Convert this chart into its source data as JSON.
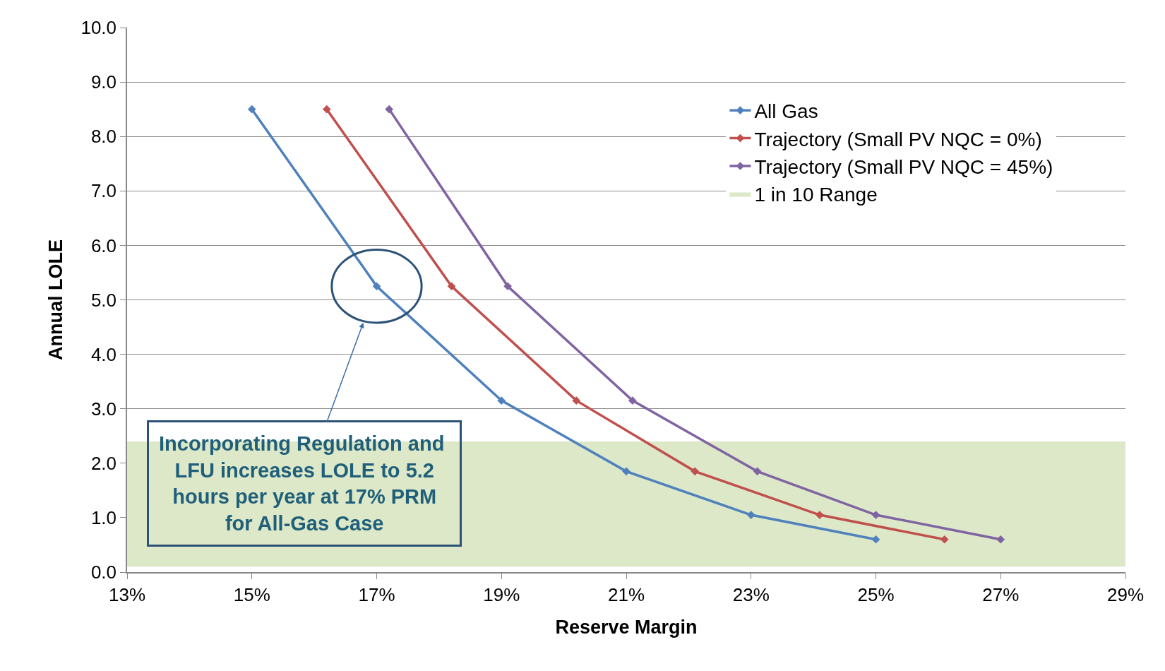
{
  "chart_data": {
    "type": "line",
    "xlabel": "Reserve Margin",
    "ylabel": "Annual LOLE",
    "series": [
      {
        "name": "All Gas",
        "color": "#4f81bd",
        "x": [
          15,
          17,
          19,
          21,
          23,
          25
        ],
        "values": [
          8.5,
          5.25,
          3.15,
          1.85,
          1.05,
          0.6
        ]
      },
      {
        "name": "Trajectory (Small PV NQC = 0%)",
        "color": "#c0504d",
        "x": [
          16.2,
          18.2,
          20.2,
          22.1,
          24.1,
          26.1
        ],
        "values": [
          8.5,
          5.25,
          3.15,
          1.85,
          1.05,
          0.6
        ]
      },
      {
        "name": "Trajectory (Small PV NQC = 45%)",
        "color": "#8064a2",
        "x": [
          17.2,
          19.1,
          21.1,
          23.1,
          25,
          27
        ],
        "values": [
          8.5,
          5.25,
          3.15,
          1.85,
          1.05,
          0.6
        ]
      }
    ],
    "bands": [
      {
        "axis": "y",
        "from": 0.1,
        "to": 2.4,
        "label": "1 in 10 Range",
        "color": "#dce8c8"
      }
    ],
    "annotations": [
      {
        "text": "Incorporating Regulation and LFU increases LOLE to 5.2 hours per year at 17% PRM for All-Gas Case",
        "x": 17,
        "y": 5.25
      }
    ],
    "xlim": [
      13,
      29
    ],
    "xticks": [
      {
        "value": 13,
        "label": "13%"
      },
      {
        "value": 15,
        "label": "15%"
      },
      {
        "value": 17,
        "label": "17%"
      },
      {
        "value": 19,
        "label": "19%"
      },
      {
        "value": 21,
        "label": "21%"
      },
      {
        "value": 23,
        "label": "23%"
      },
      {
        "value": 25,
        "label": "25%"
      },
      {
        "value": 27,
        "label": "27%"
      },
      {
        "value": 29,
        "label": "29%"
      }
    ],
    "ylim": [
      0,
      10
    ],
    "yticks": [
      {
        "value": 0,
        "label": "0.0"
      },
      {
        "value": 1,
        "label": "1.0"
      },
      {
        "value": 2,
        "label": "2.0"
      },
      {
        "value": 3,
        "label": "3.0"
      },
      {
        "value": 4,
        "label": "4.0"
      },
      {
        "value": 5,
        "label": "5.0"
      },
      {
        "value": 6,
        "label": "6.0"
      },
      {
        "value": 7,
        "label": "7.0"
      },
      {
        "value": 8,
        "label": "8.0"
      },
      {
        "value": 9,
        "label": "9.0"
      },
      {
        "value": 10,
        "label": "10.0"
      }
    ],
    "grid": "y",
    "legend": "top right",
    "marker": "diamond",
    "line_style": "solid"
  }
}
